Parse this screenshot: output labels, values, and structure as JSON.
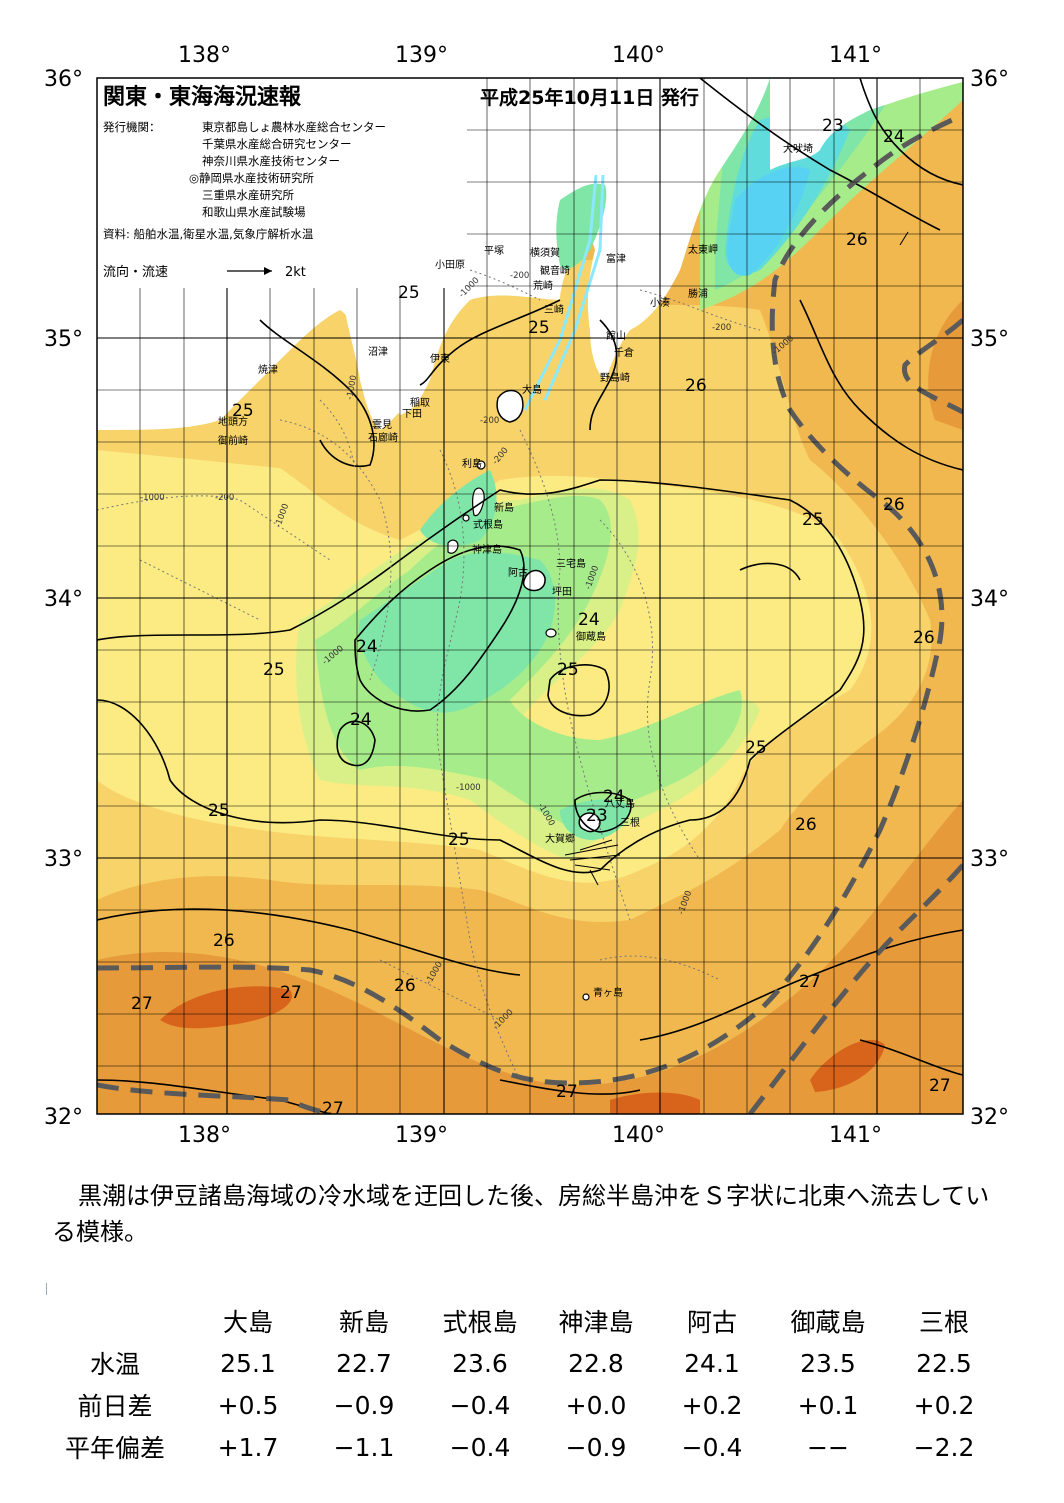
{
  "header": {
    "title": "関東・東海海況速報",
    "date": "平成25年10月11日 発行",
    "issuer_label": "発行機関：",
    "issuers": [
      "東京都島しょ農林水産総合センター",
      "千葉県水産総合研究センター",
      "神奈川県水産技術センター",
      "◎静岡県水産技術研究所",
      "三重県水産研究所",
      "和歌山県水産試験場"
    ],
    "source": "資料: 船舶水温,衛星水温,気象庁解析水温",
    "flow_label": "流向・流速",
    "flow_unit": "2kt"
  },
  "axes": {
    "lon_ticks": [
      "138°",
      "139°",
      "140°",
      "141°"
    ],
    "lat_ticks": [
      "36°",
      "35°",
      "34°",
      "33°",
      "32°"
    ]
  },
  "place_names": [
    "犬吠埼",
    "太東岬",
    "勝浦",
    "小湊",
    "富津",
    "館山",
    "千倉",
    "野島崎",
    "横須賀",
    "観音崎",
    "荒崎",
    "三崎",
    "平塚",
    "小田原",
    "大島",
    "沼津",
    "伊東",
    "焼津",
    "稲取",
    "下田",
    "雲見",
    "石廊崎",
    "地頭方",
    "御前崎",
    "利島",
    "新島",
    "式根島",
    "神津島",
    "阿古",
    "三宅島",
    "坪田",
    "御蔵島",
    "八丈島",
    "三根",
    "大賀郷",
    "青ヶ島"
  ],
  "isotherm_labels": [
    "23",
    "24",
    "26",
    "25",
    "25",
    "26",
    "25",
    "25",
    "26",
    "25",
    "24",
    "24",
    "25",
    "24",
    "26",
    "25",
    "25",
    "25",
    "26",
    "24",
    "23",
    "26",
    "27",
    "26",
    "27",
    "27",
    "27",
    "27",
    "27"
  ],
  "depth_labels": [
    "-200",
    "-1000",
    "-200",
    "-1000",
    "-200",
    "-1000",
    "-1000",
    "-200",
    "-1000",
    "-1000",
    "-1000",
    "-1000",
    "-1000",
    "-1000",
    "-1000",
    "-200",
    "-1000"
  ],
  "colors": {
    "sea_27": "#e79a3a",
    "sea_26": "#f0b84e",
    "sea_25": "#f7d36a",
    "sea_245": "#fbeb82",
    "sea_24": "#d9f089",
    "sea_235": "#a7ec8b",
    "sea_23": "#7fe6a8",
    "sea_22": "#60dcdc",
    "sea_21": "#58d2f2",
    "warm_core": "#d8641c",
    "land": "#ffffff",
    "kuroshio": "#5a5a5a",
    "flow": "#8be9ff"
  },
  "summary": "黒潮は伊豆諸島海域の冷水域を迂回した後、房総半島沖をＳ字状に北東へ流去している模様。",
  "table": {
    "columns": [
      "大島",
      "新島",
      "式根島",
      "神津島",
      "阿古",
      "御蔵島",
      "三根"
    ],
    "rows": [
      {
        "label": "水温",
        "values": [
          "25.1",
          "22.7",
          "23.6",
          "22.8",
          "24.1",
          "23.5",
          "22.5"
        ]
      },
      {
        "label": "前日差",
        "values": [
          "+0.5",
          "−0.9",
          "−0.4",
          "+0.0",
          "+0.2",
          "+0.1",
          "+0.2"
        ]
      },
      {
        "label": "平年偏差",
        "values": [
          "+1.7",
          "−1.1",
          "−0.4",
          "−0.9",
          "−0.4",
          "−−",
          "−2.2"
        ]
      }
    ]
  }
}
